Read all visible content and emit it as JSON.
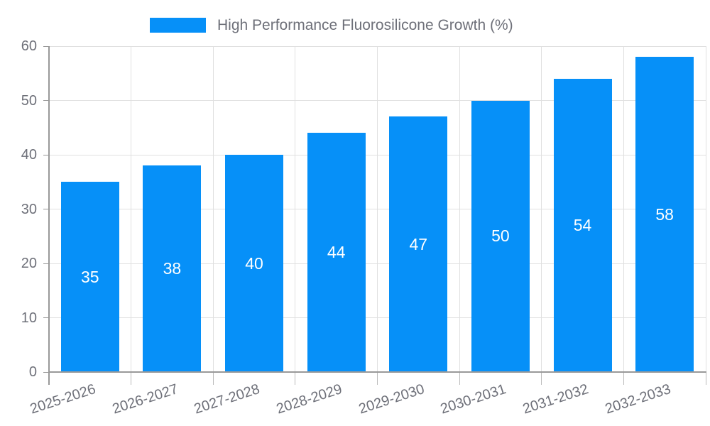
{
  "chart_data": {
    "type": "bar",
    "title": "High Performance Fluorosilicone Growth (%)",
    "categories": [
      "2025-2026",
      "2026-2027",
      "2027-2028",
      "2028-2029",
      "2029-2030",
      "2030-2031",
      "2031-2032",
      "2032-2033"
    ],
    "values": [
      35,
      38,
      40,
      44,
      47,
      50,
      54,
      58
    ],
    "xlabel": "",
    "ylabel": "",
    "ylim": [
      0,
      60
    ],
    "yticks": [
      0,
      10,
      20,
      30,
      40,
      50,
      60
    ],
    "grid": true,
    "legend_position": "top",
    "x_label_rotation_deg": -18,
    "bar_color": "#0690f8",
    "value_label_color": "#ffffff",
    "axis_text_color": "#6e7079",
    "grid_color": "#e0e0e0",
    "axis_line_color": "#999999",
    "tick_color": "#bbbbbb"
  }
}
